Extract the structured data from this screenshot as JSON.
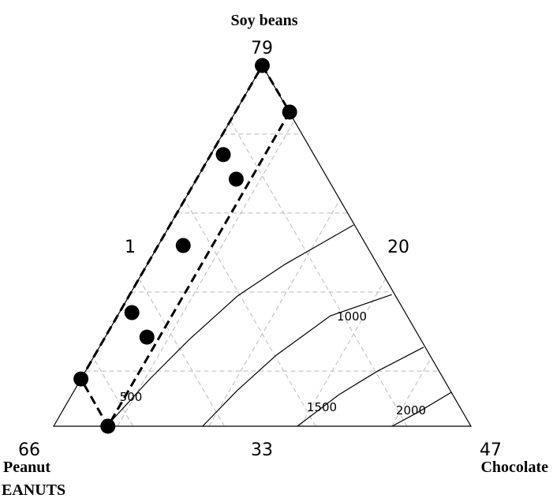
{
  "chart_data": {
    "type": "ternary",
    "title": "Soy beans",
    "top_value": "79",
    "left_side_value": "1",
    "right_side_value": "20",
    "left_corner_value": "66",
    "bottom_mid_value": "33",
    "right_corner_value": "47",
    "left_label": "Peanut",
    "left_label_line2": "EANUTS",
    "right_label": "Chocolate",
    "points": {
      "soy": [
        1.0,
        0.871,
        0.753,
        0.685,
        0.501,
        0.315,
        0.247,
        0.131,
        0.0
      ],
      "chocolate": [
        0.0,
        0.13,
        0.03,
        0.095,
        0.06,
        0.03,
        0.1,
        0.0,
        0.13
      ],
      "color": "#000000"
    },
    "contours": [
      {
        "level": 500,
        "soy": [
          0.011,
          0.131,
          0.241,
          0.361,
          0.449,
          0.558
        ],
        "chocolate": [
          0.13,
          0.165,
          0.205,
          0.26,
          0.33,
          0.44
        ]
      },
      {
        "level": 1000,
        "soy": [
          0.0,
          0.098,
          0.197,
          0.306,
          0.365
        ],
        "chocolate": [
          0.357,
          0.39,
          0.435,
          0.51,
          0.628
        ]
      },
      {
        "level": 1500,
        "soy": [
          0.0,
          0.0875,
          0.153,
          0.219
        ],
        "chocolate": [
          0.584,
          0.64,
          0.7,
          0.777
        ]
      },
      {
        "level": 2000,
        "soy": [
          0.0,
          0.039,
          0.094
        ],
        "chocolate": [
          0.811,
          0.854,
          0.906
        ]
      }
    ]
  }
}
